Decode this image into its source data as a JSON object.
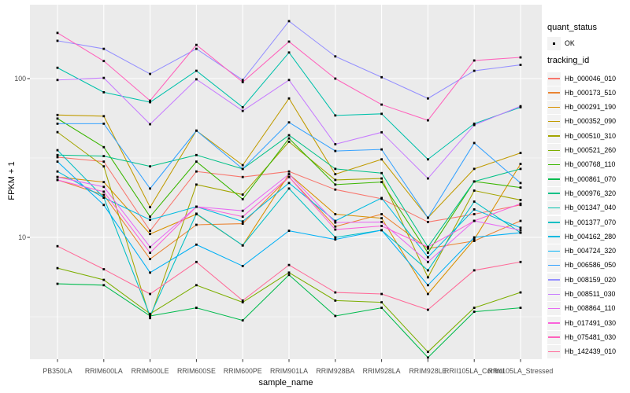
{
  "chart_data": {
    "type": "line",
    "title": "",
    "xlabel": "sample_name",
    "ylabel": "FPKM + 1",
    "y_scale": "log10",
    "y_ticks": [
      100,
      10
    ],
    "y_minor_ticks": [
      31.623,
      3.1623
    ],
    "ylim": [
      1.7,
      292
    ],
    "grid": true,
    "legend_position": "right",
    "point_legend": {
      "title": "quant_status",
      "items": [
        "OK"
      ],
      "marker_color": "#000000"
    },
    "series_legend_title": "tracking_id",
    "x_categories": [
      "PB350LA",
      "RRIM600LA",
      "RRIM600LE",
      "RRIM600SE",
      "RRIM600PE",
      "RRIM901LA",
      "RRIM928BA",
      "RRIM928LA",
      "RRIM928LE",
      "RRII105LA_Control",
      "RRII105LA_Stressed"
    ],
    "series": [
      {
        "name": "Hb_000046_010",
        "color": "#F8766D",
        "values": [
          32,
          30,
          11,
          26,
          24,
          26,
          20,
          17.5,
          12.5,
          14,
          16
        ]
      },
      {
        "name": "Hb_000173_510",
        "color": "#EA8331",
        "values": [
          23,
          18.5,
          7.3,
          12,
          12.2,
          24,
          11.7,
          14,
          8.5,
          9.5,
          12.7
        ]
      },
      {
        "name": "Hb_000291_190",
        "color": "#D89000",
        "values": [
          24,
          22.3,
          10.5,
          14,
          8.9,
          25,
          14,
          13.2,
          4.4,
          9.7,
          29
        ]
      },
      {
        "name": "Hb_000352_090",
        "color": "#C09B00",
        "values": [
          59,
          58,
          15.5,
          47,
          28.5,
          75,
          25,
          31,
          13.3,
          27,
          34
        ]
      },
      {
        "name": "Hb_000510_310",
        "color": "#A3A500",
        "values": [
          46,
          28,
          3.1,
          21.5,
          18.6,
          40,
          23,
          23.5,
          5.6,
          19.7,
          17.2
        ]
      },
      {
        "name": "Hb_000521_260",
        "color": "#7CAE00",
        "values": [
          6.4,
          5.4,
          3.3,
          5,
          3.9,
          6,
          4,
          3.9,
          1.9,
          3.6,
          4.5
        ]
      },
      {
        "name": "Hb_000768_110",
        "color": "#39B600",
        "values": [
          56,
          37,
          13.5,
          30,
          17.4,
          42,
          21.5,
          22.3,
          8,
          22.5,
          20.6
        ]
      },
      {
        "name": "Hb_000861_070",
        "color": "#00BB4E",
        "values": [
          5.1,
          5,
          3.2,
          3.6,
          3,
          5.8,
          3.2,
          3.6,
          1.75,
          3.4,
          3.6
        ]
      },
      {
        "name": "Hb_000976_320",
        "color": "#00C087",
        "values": [
          33,
          32.5,
          28,
          33,
          27,
          44,
          27,
          25.4,
          8.7,
          22.5,
          27
        ]
      },
      {
        "name": "Hb_001347_040",
        "color": "#00C1AB",
        "values": [
          117,
          82,
          71,
          112,
          66,
          146,
          58.6,
          60,
          31,
          52,
          66
        ]
      },
      {
        "name": "Hb_001377_070",
        "color": "#00BFC4",
        "values": [
          35.4,
          17.8,
          3.2,
          14.1,
          8.9,
          20.3,
          10,
          11.1,
          6.2,
          16.8,
          10.7
        ]
      },
      {
        "name": "Hb_004162_280",
        "color": "#00BAE0",
        "values": [
          26,
          17.8,
          12.9,
          15.6,
          12.6,
          22,
          12.7,
          17.7,
          7.5,
          15,
          11.5
        ]
      },
      {
        "name": "Hb_004724_320",
        "color": "#00B0F6",
        "values": [
          30,
          16,
          6,
          9,
          6.6,
          11,
          9.7,
          11.1,
          5,
          10,
          10.7
        ]
      },
      {
        "name": "Hb_006586_050",
        "color": "#35A2FF",
        "values": [
          52,
          52,
          20.3,
          47,
          27,
          53,
          35,
          35.8,
          13.3,
          39.3,
          22
        ]
      },
      {
        "name": "Hb_008159_020",
        "color": "#9590FF",
        "values": [
          173,
          154,
          107,
          154,
          98,
          230,
          138,
          102,
          75,
          112,
          122
        ]
      },
      {
        "name": "Hb_008511_030",
        "color": "#C77CFF",
        "values": [
          98,
          101,
          51.6,
          99,
          62.6,
          98,
          38.6,
          45.9,
          23.5,
          51,
          67
        ]
      },
      {
        "name": "Hb_008864_110",
        "color": "#E76BF3",
        "values": [
          24,
          20.8,
          8.7,
          15.6,
          14.7,
          25,
          12.4,
          12.5,
          7,
          12.7,
          11.1
        ]
      },
      {
        "name": "Hb_017491_030",
        "color": "#FA62DB",
        "values": [
          23,
          19.4,
          8,
          15.6,
          13.5,
          24,
          11.2,
          11.8,
          8.7,
          12.7,
          16.3
        ]
      },
      {
        "name": "Hb_075481_030",
        "color": "#FF62BC",
        "values": [
          194,
          129,
          72.6,
          163,
          95,
          171,
          100,
          68.6,
          54.6,
          130,
          136
        ]
      },
      {
        "name": "Hb_142439_010",
        "color": "#FF6A98",
        "values": [
          8.8,
          6.3,
          4.4,
          7,
          4,
          6.7,
          4.5,
          4.4,
          3.5,
          6.2,
          7
        ]
      }
    ]
  },
  "colors": {
    "panel_background": "#EBEBEB",
    "gridline": "#FFFFFF",
    "tick_mark": "#333333",
    "tick_text": "#4D4D4D",
    "point": "#000000",
    "legend_key_background": "#F2F2F2"
  }
}
